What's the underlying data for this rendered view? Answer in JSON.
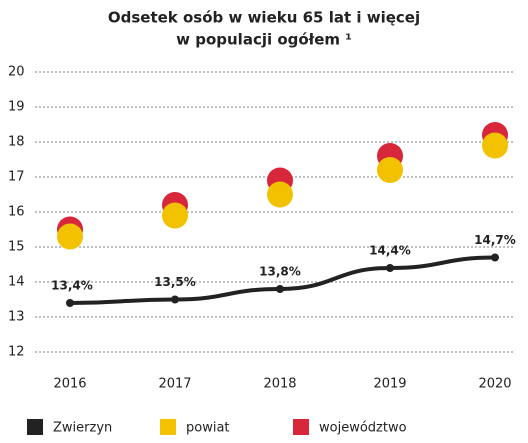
{
  "chart_data": {
    "type": "line",
    "title": [
      "Odsetek osób w wieku 65 lat i więcej",
      "w populacji ogółem ¹"
    ],
    "categories": [
      "2016",
      "2017",
      "2018",
      "2019",
      "2020"
    ],
    "ylim": [
      12,
      20
    ],
    "yticks": [
      12,
      13,
      14,
      15,
      16,
      17,
      18,
      19,
      20
    ],
    "grid": true,
    "legend": "bottom",
    "series": [
      {
        "name": "Zwierzyn",
        "color": "#222222",
        "mode": "line",
        "values": [
          13.4,
          13.5,
          13.8,
          14.4,
          14.7
        ],
        "value_labels": [
          "13,4%",
          "13,5%",
          "13,8%",
          "14,4%",
          "14,7%"
        ]
      },
      {
        "name": "powiat",
        "color": "#f2c200",
        "mode": "markers",
        "values": [
          15.3,
          15.9,
          16.5,
          17.2,
          17.9
        ]
      },
      {
        "name": "województwo",
        "color": "#d8263a",
        "mode": "markers",
        "values": [
          15.5,
          16.2,
          16.9,
          17.6,
          18.2
        ]
      }
    ]
  }
}
